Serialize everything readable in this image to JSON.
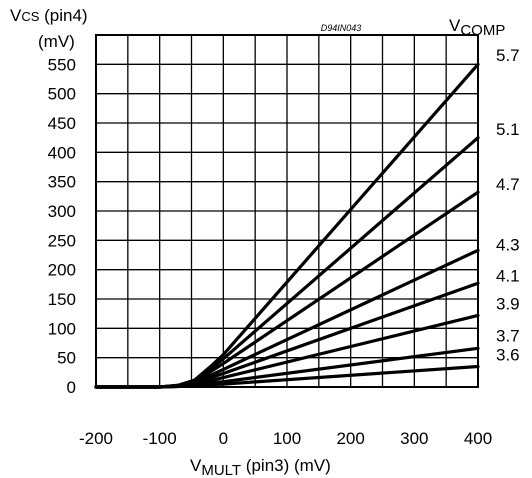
{
  "chart_data": {
    "type": "line",
    "code": "D94IN043",
    "y_title": {
      "main": "V",
      "sub": "CS",
      "rest": " (pin4)",
      "unit": "(mV)"
    },
    "x_title": {
      "main": "V",
      "sub": "MULT",
      "rest": " (pin3) (mV)"
    },
    "series_title": {
      "main": "V",
      "sub": "COMP"
    },
    "xlim": [
      -200,
      400
    ],
    "ylim": [
      0,
      600
    ],
    "x_ticks": [
      -200,
      -100,
      0,
      100,
      200,
      300,
      400
    ],
    "y_ticks": [
      0,
      50,
      100,
      150,
      200,
      250,
      300,
      350,
      400,
      450,
      500,
      550
    ],
    "grid": true,
    "line_color": "#000000",
    "series": [
      {
        "name": "5.7",
        "points": [
          [
            -200,
            0
          ],
          [
            -100,
            0
          ],
          [
            -70,
            3
          ],
          [
            -45,
            12
          ],
          [
            -20,
            35
          ],
          [
            0,
            55
          ],
          [
            400,
            550
          ]
        ]
      },
      {
        "name": "5.1",
        "points": [
          [
            -200,
            0
          ],
          [
            -100,
            0
          ],
          [
            -70,
            3
          ],
          [
            -45,
            11
          ],
          [
            -20,
            30
          ],
          [
            0,
            48
          ],
          [
            400,
            425
          ]
        ]
      },
      {
        "name": "4.7",
        "points": [
          [
            -200,
            0
          ],
          [
            -100,
            0
          ],
          [
            -70,
            2
          ],
          [
            -45,
            10
          ],
          [
            -20,
            26
          ],
          [
            0,
            40
          ],
          [
            400,
            332
          ]
        ]
      },
      {
        "name": "4.3",
        "points": [
          [
            -200,
            0
          ],
          [
            -100,
            0
          ],
          [
            -70,
            2
          ],
          [
            -45,
            8
          ],
          [
            -20,
            20
          ],
          [
            0,
            30
          ],
          [
            400,
            233
          ]
        ]
      },
      {
        "name": "4.1",
        "points": [
          [
            -200,
            0
          ],
          [
            -100,
            0
          ],
          [
            -70,
            2
          ],
          [
            -45,
            7
          ],
          [
            -20,
            16
          ],
          [
            0,
            23
          ],
          [
            400,
            177
          ]
        ]
      },
      {
        "name": "3.9",
        "points": [
          [
            -200,
            0
          ],
          [
            -100,
            0
          ],
          [
            -70,
            1
          ],
          [
            -45,
            5
          ],
          [
            -20,
            11
          ],
          [
            0,
            16
          ],
          [
            400,
            122
          ]
        ]
      },
      {
        "name": "3.7",
        "points": [
          [
            -200,
            0
          ],
          [
            -100,
            0
          ],
          [
            -70,
            1
          ],
          [
            -45,
            4
          ],
          [
            -20,
            7
          ],
          [
            0,
            9
          ],
          [
            400,
            66
          ]
        ]
      },
      {
        "name": "3.6",
        "points": [
          [
            -200,
            0
          ],
          [
            -100,
            0
          ],
          [
            -70,
            1
          ],
          [
            -45,
            2
          ],
          [
            -20,
            4
          ],
          [
            0,
            5
          ],
          [
            400,
            35
          ]
        ]
      }
    ],
    "series_label_y": {
      "5.7": 566,
      "5.1": 440,
      "4.7": 346,
      "4.3": 243,
      "4.1": 190,
      "3.9": 142,
      "3.7": 88,
      "3.6": 55
    }
  }
}
